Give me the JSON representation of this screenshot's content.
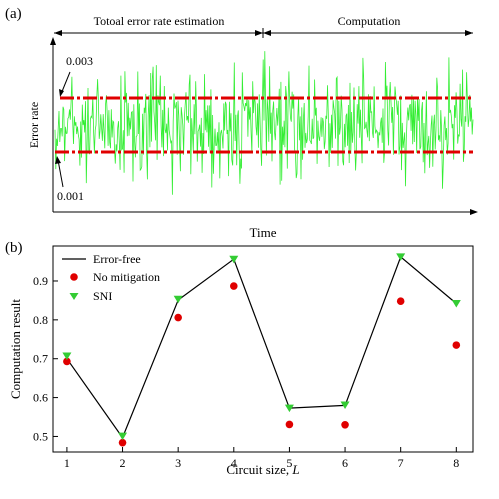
{
  "panel_a": {
    "label": "(a)",
    "segment_left_label": "Totoal error rate estimation",
    "segment_right_label": "Computation",
    "ylabel": "Error rate",
    "xlabel": "Time",
    "upper_annotation": "0.003",
    "lower_annotation": "0.001",
    "colors": {
      "signal": "#33ee33",
      "bounds": "#e00000"
    }
  },
  "panel_b": {
    "label": "(b)",
    "xlabel_main": "Circuit size, ",
    "xlabel_var": "L",
    "ylabel": "Computation result"
  },
  "chart_data": [
    {
      "type": "line",
      "title": "",
      "xlabel": "Time",
      "ylabel": "Error rate",
      "annotations": [
        "Totoal error rate estimation",
        "Computation",
        "0.003",
        "0.001"
      ],
      "series": [
        {
          "name": "",
          "description_free": true,
          "color": "#33ee33",
          "kind": "noisy-signal"
        },
        {
          "name": "",
          "value": 0.003,
          "color": "#e00000",
          "style": "dashed"
        },
        {
          "name": "",
          "value": 0.001,
          "color": "#e00000",
          "style": "dashed"
        }
      ],
      "grid": false
    },
    {
      "type": "line",
      "title": "",
      "xlabel": "Circuit size, L",
      "ylabel": "Computation result",
      "x": [
        1,
        2,
        3,
        4,
        5,
        6,
        7,
        8
      ],
      "xlim": [
        0.75,
        8.3
      ],
      "ylim": [
        0.46,
        0.99
      ],
      "xticks": [
        "1",
        "2",
        "3",
        "4",
        "5",
        "6",
        "7",
        "8"
      ],
      "yticks": [
        "0.5",
        "0.6",
        "0.7",
        "0.8",
        "0.9"
      ],
      "ytick_values": [
        0.5,
        0.6,
        0.7,
        0.8,
        0.9
      ],
      "series": [
        {
          "name": "Error-free",
          "marker": "line",
          "color": "#000000",
          "values": [
            0.7,
            0.497,
            0.851,
            0.956,
            0.573,
            0.58,
            0.962,
            0.842
          ]
        },
        {
          "name": "No mitigation",
          "marker": "circle",
          "color": "#e00000",
          "values": [
            0.693,
            0.484,
            0.806,
            0.887,
            0.531,
            0.53,
            0.848,
            0.735
          ]
        },
        {
          "name": "SNI",
          "marker": "triangle-down",
          "color": "#33cc33",
          "values": [
            0.707,
            0.501,
            0.853,
            0.956,
            0.573,
            0.581,
            0.962,
            0.842
          ]
        }
      ],
      "legend": "top-left",
      "grid": false
    }
  ]
}
